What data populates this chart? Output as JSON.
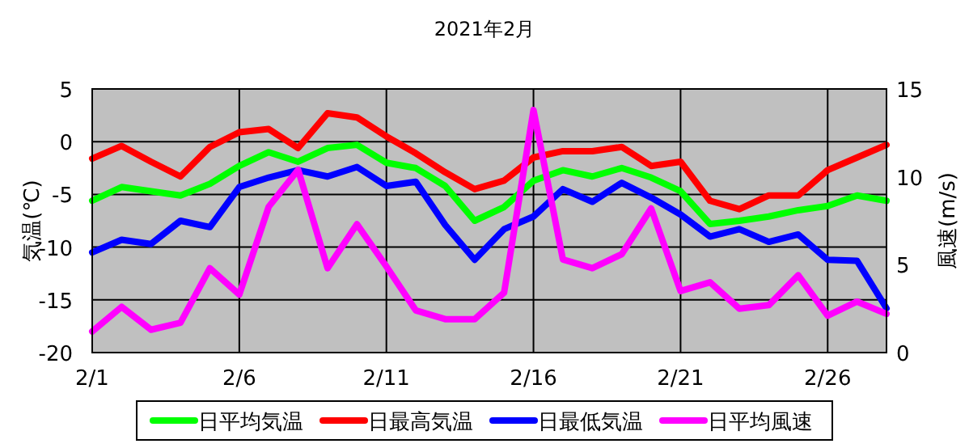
{
  "chart_data": {
    "type": "line",
    "title": "2021年2月",
    "ylabel": "気温(℃)",
    "y2label": "風速(m/s)",
    "x": [
      "2021-02-01",
      "2021-02-02",
      "2021-02-03",
      "2021-02-04",
      "2021-02-05",
      "2021-02-06",
      "2021-02-07",
      "2021-02-08",
      "2021-02-09",
      "2021-02-10",
      "2021-02-11",
      "2021-02-12",
      "2021-02-13",
      "2021-02-14",
      "2021-02-15",
      "2021-02-16",
      "2021-02-17",
      "2021-02-18",
      "2021-02-19",
      "2021-02-20",
      "2021-02-21",
      "2021-02-22",
      "2021-02-23",
      "2021-02-24",
      "2021-02-25",
      "2021-02-26",
      "2021-02-27",
      "2021-02-28"
    ],
    "xlim": [
      "2021-02-01",
      "2021-02-28"
    ],
    "xticks": [
      {
        "value": "2021-02-01",
        "label": "2/1"
      },
      {
        "value": "2021-02-06",
        "label": "2/6"
      },
      {
        "value": "2021-02-11",
        "label": "2/11"
      },
      {
        "value": "2021-02-16",
        "label": "2/16"
      },
      {
        "value": "2021-02-21",
        "label": "2/21"
      },
      {
        "value": "2021-02-26",
        "label": "2/26"
      }
    ],
    "ylim": [
      -20,
      5
    ],
    "yticks": [
      -20,
      -15,
      -10,
      -5,
      0,
      5
    ],
    "y2lim": [
      0,
      15
    ],
    "y2ticks": [
      0,
      5,
      10,
      15
    ],
    "grid": true,
    "legend": "bottom",
    "series": [
      {
        "name": "日平均気温",
        "color": "#00ff00",
        "values": [
          -5.6,
          -4.3,
          -4.7,
          -5.1,
          -4.0,
          -2.3,
          -1.0,
          -1.9,
          -0.6,
          -0.3,
          -2.0,
          -2.5,
          -4.2,
          -7.5,
          -6.2,
          -3.7,
          -2.7,
          -3.3,
          -2.5,
          -3.4,
          -4.7,
          -7.8,
          -7.5,
          -7.1,
          -6.5,
          -6.1,
          -5.1,
          -5.6
        ]
      },
      {
        "name": "日最高気温",
        "color": "#ff0000",
        "values": [
          -1.6,
          -0.4,
          -1.9,
          -3.3,
          -0.5,
          0.9,
          1.2,
          -0.6,
          2.7,
          2.3,
          0.5,
          -1.1,
          -2.9,
          -4.5,
          -3.7,
          -1.5,
          -0.9,
          -0.9,
          -0.5,
          -2.3,
          -1.9,
          -5.6,
          -6.4,
          -5.1,
          -5.1,
          -2.7,
          -1.5,
          -0.3
        ]
      },
      {
        "name": "日最低気温",
        "color": "#0000ff",
        "values": [
          -10.5,
          -9.3,
          -9.7,
          -7.5,
          -8.1,
          -4.3,
          -3.4,
          -2.7,
          -3.3,
          -2.4,
          -4.2,
          -3.8,
          -7.9,
          -11.2,
          -8.3,
          -7.1,
          -4.5,
          -5.7,
          -3.9,
          -5.3,
          -6.9,
          -9.0,
          -8.3,
          -9.5,
          -8.8,
          -11.2,
          -11.3,
          -15.8
        ]
      },
      {
        "name": "日平均風速",
        "color": "#ff00ff",
        "axis": "y2",
        "values": [
          1.2,
          2.6,
          1.3,
          1.7,
          4.8,
          3.3,
          8.3,
          10.4,
          4.8,
          7.3,
          4.9,
          2.4,
          1.9,
          1.9,
          3.4,
          13.8,
          5.3,
          4.8,
          5.6,
          8.2,
          3.5,
          4.0,
          2.5,
          2.7,
          4.4,
          2.1,
          2.9,
          2.2
        ]
      }
    ]
  }
}
